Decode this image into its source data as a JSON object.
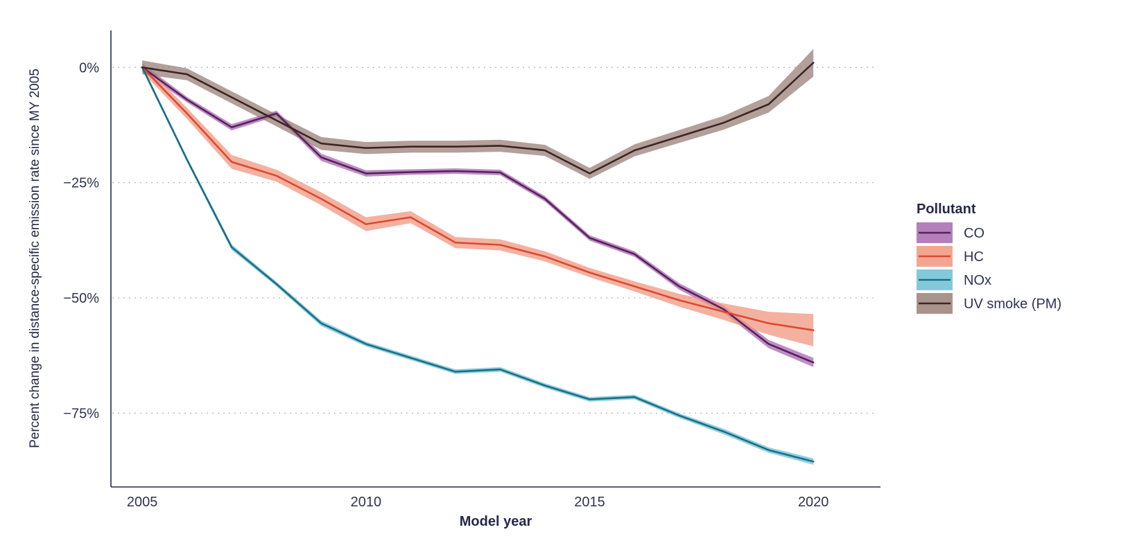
{
  "chart_data": {
    "type": "line",
    "title": "",
    "xlabel": "Model year",
    "ylabel": "Percent change in distance-specific emission rate since MY 2005",
    "x": [
      2005,
      2006,
      2007,
      2008,
      2009,
      2010,
      2011,
      2012,
      2013,
      2014,
      2015,
      2016,
      2017,
      2018,
      2019,
      2020
    ],
    "xlim": [
      2004.3,
      2021.5
    ],
    "ylim": [
      -91,
      8
    ],
    "x_ticks": [
      2005,
      2010,
      2015,
      2020
    ],
    "x_tick_labels": [
      "2005",
      "2010",
      "2015",
      "2020"
    ],
    "y_ticks": [
      0,
      -25,
      -50,
      -75
    ],
    "y_tick_labels": [
      "0%",
      "−25%",
      "−50%",
      "−75%"
    ],
    "grid": "horizontal dotted",
    "legend": {
      "title": "Pollutant",
      "position": "right"
    },
    "series": [
      {
        "name": "CO",
        "line_color": "#5b1f5e",
        "band_color": "#a66ab0",
        "values": [
          0,
          -7,
          -13,
          -10,
          -19.5,
          -23,
          -22.7,
          -22.5,
          -22.8,
          -28.5,
          -37,
          -40.5,
          -47.5,
          -52.5,
          -60,
          -64
        ],
        "band": [
          0.8,
          0.6,
          0.7,
          0.6,
          0.8,
          0.7,
          0.6,
          0.6,
          0.6,
          0.6,
          0.6,
          0.6,
          0.7,
          0.8,
          0.9,
          1.0
        ]
      },
      {
        "name": "HC",
        "line_color": "#d94a32",
        "band_color": "#f0977f",
        "values": [
          0,
          -10,
          -20.5,
          -23.5,
          -28.5,
          -34,
          -32.5,
          -38,
          -38.5,
          -41,
          -44.5,
          -47.5,
          -50.5,
          -53,
          -55.5,
          -57
        ],
        "band": [
          1.0,
          1.2,
          1.5,
          1.3,
          1.4,
          1.5,
          1.3,
          1.2,
          1.2,
          1.1,
          1.0,
          1.1,
          1.4,
          1.8,
          2.5,
          3.5
        ]
      },
      {
        "name": "NOx",
        "line_color": "#1b6e86",
        "band_color": "#6fc0d4",
        "values": [
          0,
          -20,
          -39,
          -47,
          -55.5,
          -60,
          -63,
          -66,
          -65.5,
          -69,
          -72,
          -71.5,
          -75.5,
          -79,
          -83,
          -85.5
        ],
        "band": [
          0.5,
          0.5,
          0.6,
          0.5,
          0.6,
          0.5,
          0.5,
          0.5,
          0.5,
          0.5,
          0.5,
          0.5,
          0.5,
          0.6,
          0.6,
          0.7
        ]
      },
      {
        "name": "UV smoke (PM)",
        "line_color": "#3c2522",
        "band_color": "#9a8078",
        "values": [
          0,
          -1.5,
          -6.5,
          -11.5,
          -16.5,
          -17.5,
          -17.2,
          -17.2,
          -17,
          -18,
          -23,
          -18,
          -15,
          -12,
          -8,
          1
        ],
        "band": [
          1.5,
          1.3,
          1.3,
          1.3,
          1.4,
          1.3,
          1.3,
          1.3,
          1.3,
          1.2,
          1.2,
          1.3,
          1.4,
          1.5,
          1.8,
          3.0
        ]
      }
    ]
  }
}
